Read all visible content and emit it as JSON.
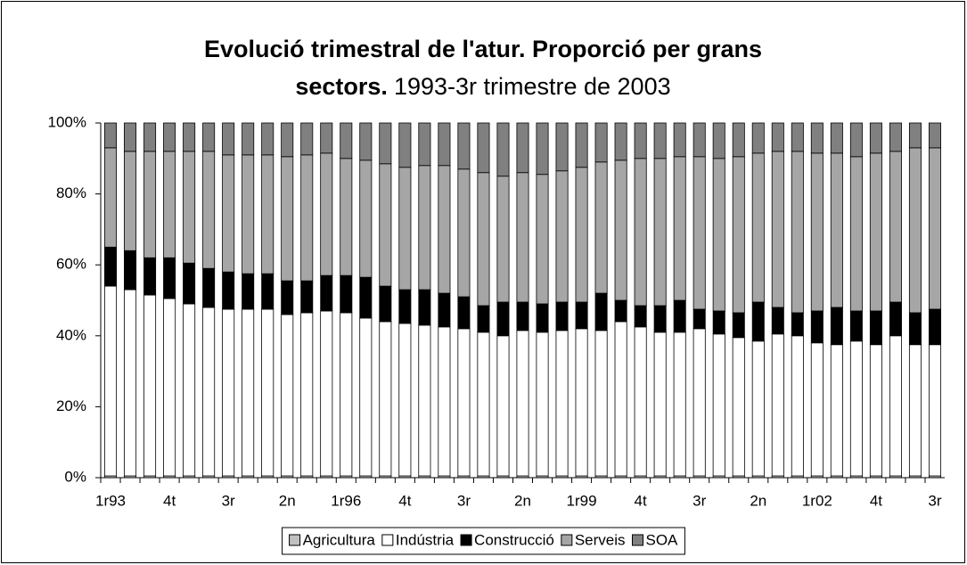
{
  "chart_data": {
    "type": "stacked_bar",
    "title": [
      "Evolució trimestral de l'atur. Proporció per grans",
      "sectors."
    ],
    "subtitle": "1993-3r trimestre de 2003",
    "categories": [
      "1r93",
      null,
      null,
      "4t",
      null,
      null,
      "3r",
      null,
      null,
      "2n",
      null,
      null,
      "1r96",
      null,
      null,
      "4t",
      null,
      null,
      "3r",
      null,
      null,
      "2n",
      null,
      null,
      "1r99",
      null,
      null,
      "4t",
      null,
      null,
      "3r",
      null,
      null,
      "2n",
      null,
      null,
      "1r02",
      null,
      null,
      "4t",
      null,
      null,
      "3r"
    ],
    "series": [
      {
        "name": "Agricultura",
        "color": "#c0c0c0",
        "values": [
          0.5,
          0.5,
          0.5,
          0.5,
          0.5,
          0.5,
          0.5,
          0.5,
          0.5,
          0.5,
          0.5,
          0.5,
          0.5,
          0.5,
          0.5,
          0.5,
          0.5,
          0.5,
          0.5,
          0.5,
          0.5,
          0.5,
          0.5,
          0.5,
          0.5,
          0.5,
          0.5,
          0.5,
          0.5,
          0.5,
          0.5,
          0.5,
          0.5,
          0.5,
          0.5,
          0.5,
          0.5,
          0.5,
          0.5,
          0.5,
          0.5,
          0.5,
          0.5
        ]
      },
      {
        "name": "Indústria",
        "color": "#ffffff",
        "values": [
          53.5,
          52.5,
          51,
          50,
          48.5,
          47.5,
          47,
          47,
          47,
          45.5,
          46,
          46.5,
          46,
          44.5,
          43.5,
          43,
          42.5,
          42,
          41.5,
          40.5,
          39.5,
          41,
          40.5,
          41,
          41.5,
          41,
          43.5,
          42,
          40.5,
          40.5,
          41.5,
          40,
          39,
          38,
          40,
          39.5,
          37.5,
          37,
          38,
          37,
          39.5,
          37,
          37
        ]
      },
      {
        "name": "Construcció",
        "color": "#000000",
        "values": [
          11,
          11,
          10.5,
          11.5,
          11.5,
          11,
          10.5,
          10,
          10,
          9.5,
          9,
          10,
          10.5,
          11.5,
          10,
          9.5,
          10,
          9.5,
          9,
          7.5,
          9.5,
          8,
          8,
          8,
          7.5,
          10.5,
          6,
          6,
          7.5,
          9,
          5.5,
          6.5,
          7,
          11,
          7.5,
          6.5,
          9,
          10.5,
          8.5,
          9.5,
          9.5,
          9,
          10
        ]
      },
      {
        "name": "Serveis",
        "color": "#a6a6a6",
        "values": [
          28,
          28,
          30,
          30,
          31.5,
          33,
          33,
          33.5,
          33.5,
          35,
          35.5,
          34.5,
          33,
          33,
          34.5,
          34.5,
          35,
          36,
          36,
          37.5,
          35.5,
          36.5,
          36.5,
          37,
          38,
          37,
          39.5,
          41.5,
          41.5,
          40.5,
          43,
          43,
          44,
          42,
          44,
          45.5,
          44.5,
          43.5,
          43.5,
          44.5,
          42.5,
          46.5,
          45.5
        ]
      },
      {
        "name": "SOA",
        "color": "#808080",
        "values": [
          7,
          8,
          8,
          8,
          8,
          8,
          9,
          9,
          9,
          9.5,
          9,
          8.5,
          10,
          10.5,
          11.5,
          12.5,
          12,
          12,
          13,
          14,
          15,
          14,
          14.5,
          13.5,
          12.5,
          11,
          10.5,
          10,
          10,
          9.5,
          9.5,
          10,
          9.5,
          8.5,
          8,
          8,
          8.5,
          8.5,
          9.5,
          8.5,
          8,
          7,
          7
        ]
      }
    ],
    "ylim": [
      0,
      100
    ],
    "yticks": [
      {
        "value": 0,
        "label": "0%"
      },
      {
        "value": 20,
        "label": "20%"
      },
      {
        "value": 40,
        "label": "40%"
      },
      {
        "value": 60,
        "label": "60%"
      },
      {
        "value": 80,
        "label": "80%"
      },
      {
        "value": 100,
        "label": "100%"
      }
    ],
    "legend": "bottom"
  }
}
